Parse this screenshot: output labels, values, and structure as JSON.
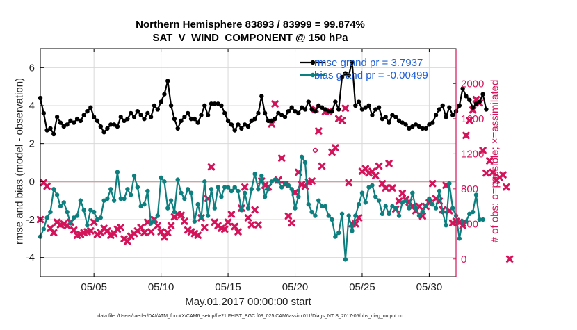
{
  "chart_data": {
    "type": "line",
    "title": "Northern Hemisphere 83893 / 83999 = 99.874%",
    "subtitle": "SAT_V_WIND_COMPONENT @ 150 hPa",
    "xlabel": "May.01,2017 00:00:00 start",
    "ylabel_left": "rmse and bias (model - observation)",
    "ylabel_right": "# of obs: o=possible; ×=assimilated",
    "footnote": "data file: /Users/raeder/DAI/ATM_forcXX/CAM6_setup/f.e21.FHIST_BGC.f09_025.CAM6assim.011/Diags_NTrS_2017-05/obs_diag_output.nc",
    "x_tick_labels": [
      "05/05",
      "05/10",
      "05/15",
      "05/20",
      "05/25",
      "05/30"
    ],
    "x_ticks": [
      5,
      10,
      15,
      20,
      25,
      30
    ],
    "xlim": [
      1,
      32
    ],
    "ylim_left": [
      -5,
      7
    ],
    "y_ticks_left": [
      -4,
      -2,
      0,
      2,
      4,
      6
    ],
    "ylim_right": [
      -200,
      2400
    ],
    "y_ticks_right": [
      0,
      400,
      800,
      1200,
      1600,
      2000
    ],
    "grid": true,
    "legend_placement": "top-right",
    "colors": {
      "rmse": "#000000",
      "bias": "#0e7f7f",
      "obs": "#d4145a",
      "zero_line": "#c8a6a6",
      "grid": "#d9d9d9",
      "legend_text": "#1f5fd6"
    },
    "series": [
      {
        "name": "rmse grand pr = 3.7937",
        "axis": "left",
        "color": "#000000",
        "x_start": 1.0,
        "x_step": 0.25,
        "values": [
          4.4,
          3.6,
          2.7,
          2.8,
          2.5,
          3.4,
          3.1,
          2.9,
          3.0,
          3.2,
          3.1,
          3.3,
          3.2,
          3.5,
          3.7,
          3.9,
          3.4,
          3.2,
          2.9,
          2.6,
          2.8,
          3.0,
          3.0,
          2.9,
          3.4,
          3.2,
          3.3,
          3.6,
          3.4,
          3.7,
          3.5,
          3.3,
          3.6,
          3.4,
          4.0,
          3.8,
          4.2,
          4.6,
          5.3,
          4.0,
          3.3,
          2.8,
          3.2,
          3.4,
          3.6,
          3.3,
          3.3,
          3.1,
          3.5,
          4.0,
          3.5,
          4.1,
          4.1,
          4.1,
          4.0,
          3.6,
          3.2,
          3.0,
          2.7,
          3.0,
          2.8,
          3.0,
          2.9,
          3.2,
          3.3,
          3.6,
          4.5,
          3.6,
          3.2,
          3.2,
          3.3,
          3.6,
          3.5,
          3.4,
          3.7,
          3.9,
          3.7,
          3.6,
          3.9,
          3.8,
          4.2,
          3.8,
          3.7,
          4.0,
          3.9,
          3.8,
          3.7,
          3.7,
          4.2,
          3.8,
          5.5,
          5.7,
          5.6,
          6.3,
          4.0,
          4.2,
          3.8,
          3.9,
          4.0,
          3.5,
          3.8,
          3.9,
          3.3,
          3.4,
          3.1,
          3.5,
          3.4,
          3.2,
          3.1,
          3.0,
          2.8,
          2.9,
          3.0,
          2.9,
          2.8,
          2.8,
          3.0,
          3.1,
          3.5,
          3.8,
          4.0,
          3.4,
          3.9,
          3.5,
          3.7,
          4.0,
          4.9,
          4.5,
          4.3,
          3.9,
          4.1,
          4.2,
          4.6,
          3.8
        ]
      },
      {
        "name": "bias grand pr = -0.00499",
        "axis": "left",
        "color": "#0e7f7f",
        "x_start": 1.0,
        "x_step": 0.25,
        "values": [
          -2.9,
          -2.5,
          -1.9,
          -1.6,
          -0.4,
          -0.7,
          -1.3,
          -1.1,
          -1.6,
          -2.2,
          -1.9,
          -1.8,
          -1.0,
          -1.5,
          -2.3,
          -1.5,
          -1.6,
          -2.0,
          -1.9,
          -1.0,
          -0.9,
          -0.4,
          -1.0,
          0.5,
          -0.9,
          -0.9,
          -0.4,
          -0.7,
          0.3,
          -0.3,
          -1.3,
          -1.2,
          -0.5,
          -2.2,
          -2.1,
          -1.8,
          0.2,
          0.0,
          -1.4,
          -1.0,
          -1.6,
          0.1,
          -0.6,
          -0.9,
          -0.4,
          -0.6,
          -2.1,
          -1.2,
          -1.9,
          0.0,
          -1.8,
          -0.4,
          -1.4,
          -0.3,
          -0.8,
          -0.3,
          -0.3,
          -0.5,
          -0.3,
          -0.5,
          -1.5,
          -0.6,
          -1.4,
          -0.4,
          0.4,
          -0.4,
          0.3,
          -0.8,
          -0.4,
          0.0,
          0.1,
          0.0,
          -0.3,
          -0.1,
          -0.2,
          -0.4,
          -1.4,
          -0.8,
          1.3,
          1.0,
          -1.2,
          -1.6,
          -1.8,
          -1.0,
          -1.3,
          -1.3,
          -1.8,
          -2.0,
          -2.9,
          -2.7,
          -1.7,
          -4.1,
          -1.8,
          -2.6,
          -1.8,
          -1.2,
          -0.6,
          -1.1,
          -0.3,
          -0.2,
          -0.8,
          -1.0,
          -1.7,
          -1.3,
          -1.7,
          -1.3,
          -1.4,
          -1.8,
          -1.1,
          -1.0,
          -1.4,
          -0.6,
          -1.4,
          -1.8,
          -1.6,
          -1.3,
          -0.9,
          -1.2,
          -1.4,
          -0.5,
          -1.6,
          -2.3,
          -0.1,
          -1.4,
          -1.8,
          -3.0,
          -2.1,
          -2.1,
          -1.7,
          -1.6,
          -0.7,
          -2.0,
          -2.0
        ]
      },
      {
        "name": "assimilated",
        "axis": "right",
        "color": "#d4145a",
        "x_start": 1.0,
        "x_step": 0.25,
        "values": [
          450,
          870,
          830,
          350,
          300,
          420,
          390,
          400,
          380,
          420,
          330,
          270,
          280,
          300,
          310,
          320,
          420,
          280,
          300,
          350,
          320,
          270,
          290,
          340,
          360,
          230,
          200,
          260,
          290,
          320,
          360,
          300,
          420,
          310,
          450,
          380,
          310,
          250,
          300,
          380,
          480,
          510,
          500,
          430,
          330,
          310,
          290,
          270,
          470,
          360,
          690,
          1050,
          420,
          380,
          350,
          340,
          420,
          510,
          370,
          310,
          580,
          820,
          470,
          390,
          560,
          390,
          890,
          840,
          820,
          1540,
          1770,
          900,
          1150,
          850,
          490,
          410,
          760,
          990,
          850,
          830,
          880,
          890,
          1710,
          1460,
          1060,
          1680,
          1680,
          1220,
          1270,
          1600,
          1580,
          1720,
          870,
          400,
          400,
          470,
          1000,
          1030,
          980,
          1000,
          950,
          1060,
          860,
          810,
          1090,
          810,
          570,
          660,
          750,
          680,
          650,
          600,
          550,
          600,
          490,
          600,
          640,
          860,
          690,
          660,
          560,
          840,
          550,
          410,
          430,
          420,
          380,
          1410,
          1580,
          1700,
          1820,
          1780,
          1240,
          980,
          1120,
          990,
          900,
          930,
          960,
          820,
          0
        ]
      },
      {
        "name": "possible",
        "axis": "right",
        "color": "#d4145a",
        "points": [
          [
            21.5,
            1240
          ]
        ]
      }
    ]
  }
}
